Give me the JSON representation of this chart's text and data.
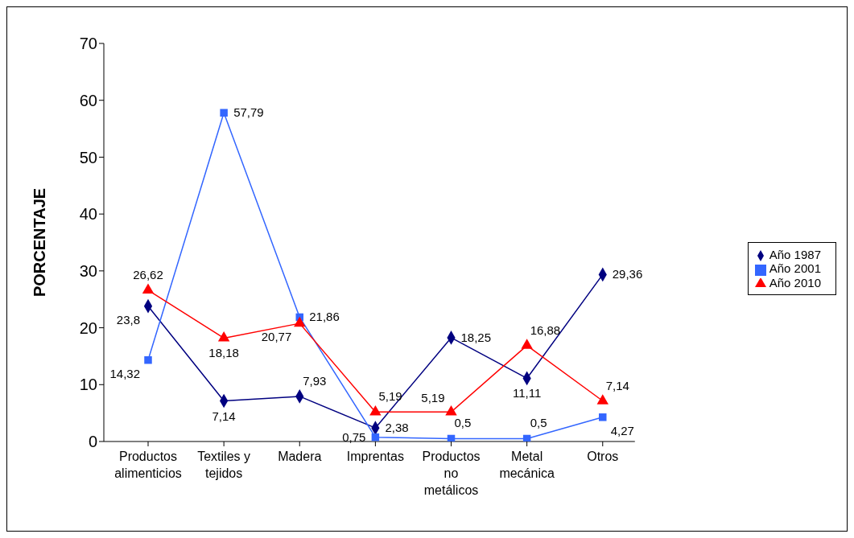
{
  "chart_data": {
    "type": "line",
    "ylabel": "PORCENTAJE",
    "categories": [
      "Productos alimenticios",
      "Textiles y tejidos",
      "Madera",
      "Imprentas",
      "Productos no metálicos",
      "Metal mecánica",
      "Otros"
    ],
    "series": [
      {
        "name": "Año 1987",
        "color": "#000080",
        "marker": "diamond",
        "values": [
          23.8,
          7.14,
          7.93,
          2.38,
          18.25,
          11.11,
          29.36
        ],
        "value_labels": [
          "23,8",
          "7,14",
          "7,93",
          "2,38",
          "18,25",
          "11,11",
          "29,36"
        ]
      },
      {
        "name": "Año 2001",
        "color": "#3366ff",
        "marker": "square",
        "values": [
          14.32,
          57.79,
          21.86,
          0.75,
          0.5,
          0.5,
          4.27
        ],
        "value_labels": [
          "14,32",
          "57,79",
          "21,86",
          "0,75",
          "0,5",
          "0,5",
          "4,27"
        ]
      },
      {
        "name": "Año 2010",
        "color": "#ff0000",
        "marker": "triangle",
        "values": [
          26.62,
          18.18,
          20.77,
          5.19,
          5.19,
          16.88,
          7.14
        ],
        "value_labels": [
          "26,62",
          "18,18",
          "20,77",
          "5,19",
          "5,19",
          "16,88",
          "7,14"
        ]
      }
    ],
    "ylim": [
      0,
      70
    ],
    "yticks": [
      0,
      10,
      20,
      30,
      40,
      50,
      60,
      70
    ],
    "grid": false,
    "legend": "right",
    "line_style": "solid"
  }
}
